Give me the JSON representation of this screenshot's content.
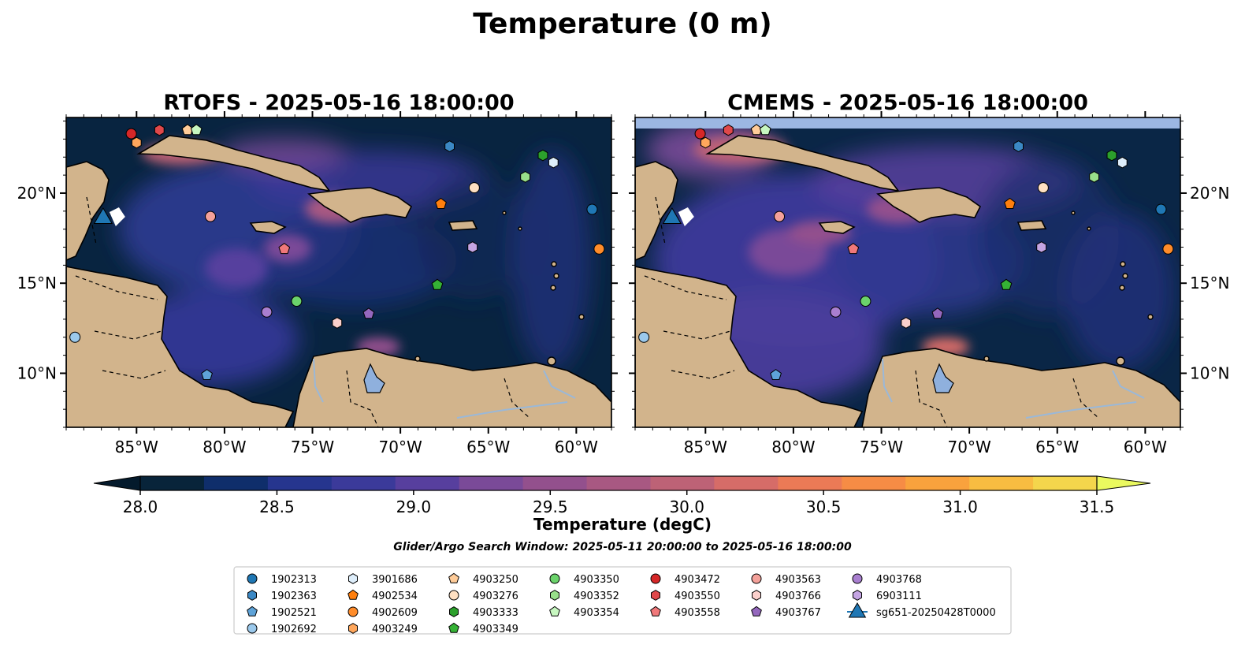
{
  "figure": {
    "title": "Temperature (0 m)",
    "search_window": "Glider/Argo Search Window: 2025-05-11 20:00:00 to 2025-05-16 18:00:00"
  },
  "chart_data": {
    "type": "heatmap",
    "panels": [
      {
        "title": "RTOFS - 2025-05-16 18:00:00"
      },
      {
        "title": "CMEMS - 2025-05-16 18:00:00"
      }
    ],
    "xlim": [
      -89,
      -58
    ],
    "ylim": [
      7,
      24.2
    ],
    "x_ticks": [
      {
        "value": -85,
        "label": "85°W"
      },
      {
        "value": -80,
        "label": "80°W"
      },
      {
        "value": -75,
        "label": "75°W"
      },
      {
        "value": -70,
        "label": "70°W"
      },
      {
        "value": -65,
        "label": "65°W"
      },
      {
        "value": -60,
        "label": "60°W"
      }
    ],
    "y_ticks": [
      {
        "value": 10,
        "label": "10°N"
      },
      {
        "value": 15,
        "label": "15°N"
      },
      {
        "value": 20,
        "label": "20°N"
      }
    ],
    "colorbar": {
      "label": "Temperature (degC)",
      "min": 28.0,
      "max": 31.5,
      "step": 0.25,
      "extend": "both",
      "ticks": [
        "28.0",
        "28.5",
        "29.0",
        "29.5",
        "30.0",
        "30.5",
        "31.0",
        "31.5"
      ],
      "colors": [
        "#08243a",
        "#0f2e6b",
        "#26358e",
        "#3b3a9a",
        "#573f9e",
        "#7a4a98",
        "#93508d",
        "#a85882",
        "#bd6276",
        "#d66c68",
        "#eb7a56",
        "#f68c45",
        "#f9a23d",
        "#f8bc41",
        "#f4d64c"
      ],
      "over_color": "#eaf95f",
      "under_color": "#041a2c"
    },
    "floats": [
      {
        "id": "1902313",
        "marker": "circle",
        "color": "#1f77b4",
        "lon": -59.1,
        "lat": 19.1
      },
      {
        "id": "1902363",
        "marker": "hexagon",
        "color": "#3b88c4",
        "lon": -67.2,
        "lat": 22.6
      },
      {
        "id": "1902521",
        "marker": "pentagon",
        "color": "#5ea3d8",
        "lon": -81.0,
        "lat": 9.9
      },
      {
        "id": "1902692",
        "marker": "circle",
        "color": "#9bc9ec",
        "lon": -88.5,
        "lat": 12.0
      },
      {
        "id": "3901686",
        "marker": "hexagon",
        "color": "#deeefb",
        "lon": -61.3,
        "lat": 21.7
      },
      {
        "id": "4902534",
        "marker": "pentagon",
        "color": "#ff7f0e",
        "lon": -67.7,
        "lat": 19.4
      },
      {
        "id": "4902609",
        "marker": "circle",
        "color": "#ff8c2a",
        "lon": -58.7,
        "lat": 16.9
      },
      {
        "id": "4903249",
        "marker": "hexagon",
        "color": "#ffa75c",
        "lon": -85.0,
        "lat": 22.8
      },
      {
        "id": "4903250",
        "marker": "pentagon",
        "color": "#ffcc99",
        "lon": -82.1,
        "lat": 23.5
      },
      {
        "id": "4903276",
        "marker": "circle",
        "color": "#ffe0c2",
        "lon": -65.8,
        "lat": 20.3
      },
      {
        "id": "4903333",
        "marker": "hexagon",
        "color": "#2ca02c",
        "lon": -61.9,
        "lat": 22.1
      },
      {
        "id": "4903349",
        "marker": "pentagon",
        "color": "#35b235",
        "lon": -67.9,
        "lat": 14.9
      },
      {
        "id": "4903350",
        "marker": "circle",
        "color": "#6bd36b",
        "lon": -75.9,
        "lat": 14.0
      },
      {
        "id": "4903352",
        "marker": "hexagon",
        "color": "#98df8a",
        "lon": -62.9,
        "lat": 20.9
      },
      {
        "id": "4903354",
        "marker": "pentagon",
        "color": "#c7f7c0",
        "lon": -81.6,
        "lat": 23.5
      },
      {
        "id": "4903472",
        "marker": "circle",
        "color": "#d62728",
        "lon": -85.3,
        "lat": 23.3
      },
      {
        "id": "4903550",
        "marker": "hexagon",
        "color": "#e0484a",
        "lon": -83.7,
        "lat": 23.5
      },
      {
        "id": "4903558",
        "marker": "pentagon",
        "color": "#f0787a",
        "lon": -76.6,
        "lat": 16.9
      },
      {
        "id": "4903563",
        "marker": "circle",
        "color": "#f4a19a",
        "lon": -80.8,
        "lat": 18.7
      },
      {
        "id": "4903766",
        "marker": "hexagon",
        "color": "#fbd0cc",
        "lon": -73.6,
        "lat": 12.8
      },
      {
        "id": "4903767",
        "marker": "pentagon",
        "color": "#9467bd",
        "lon": -71.8,
        "lat": 13.3
      },
      {
        "id": "4903768",
        "marker": "circle",
        "color": "#a97fd0",
        "lon": -77.6,
        "lat": 13.4
      },
      {
        "id": "6903111",
        "marker": "hexagon",
        "color": "#c5a5e3",
        "lon": -65.9,
        "lat": 17.0
      }
    ],
    "glider": {
      "id": "sg651-20250428T0000",
      "marker": "triangle",
      "color": "#1f77b4",
      "lon": -86.9,
      "lat": 18.6
    }
  }
}
